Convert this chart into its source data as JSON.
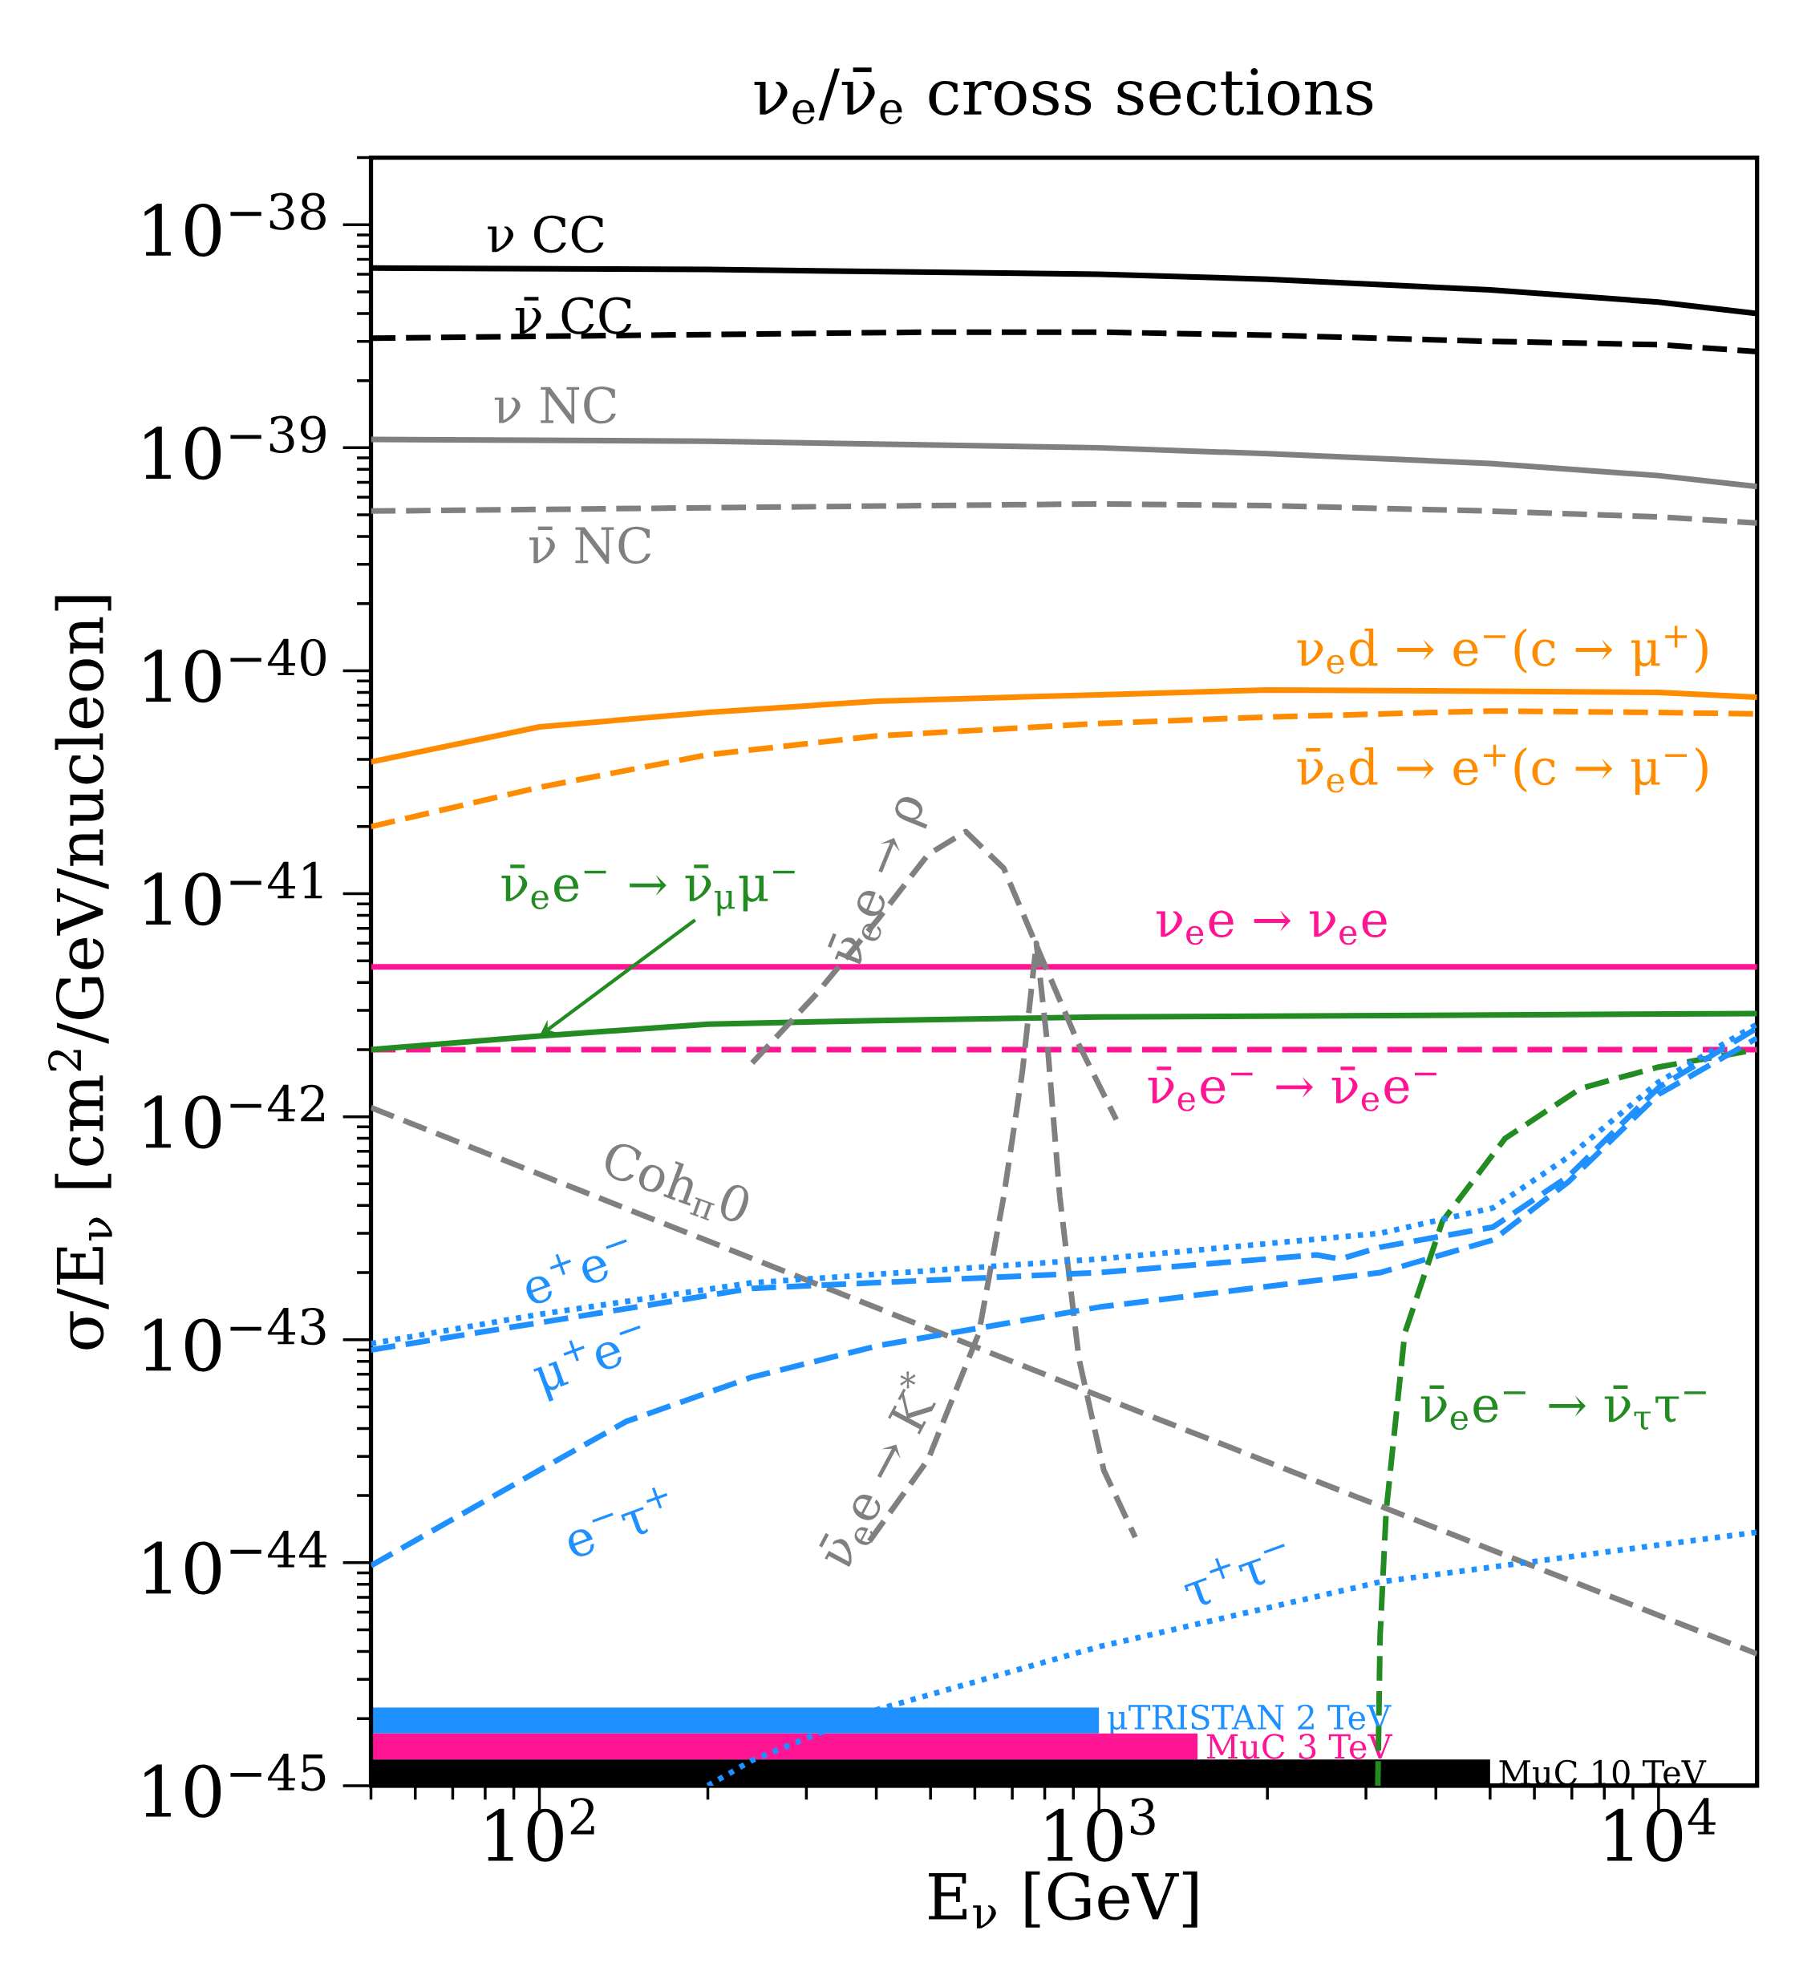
{
  "chart_data": [
    {
      "type": "line",
      "tick_labels": "y",
      "title": "ν$_{e}$/ν̄$_{e}$ cross sections",
      "xlabel": "E$_{ν}$ [GeV]",
      "ylabel": "σ/E$_{ν}$ [cm$^{2}$/GeV/nucleon]",
      "log": "xy",
      "xlim": [
        50,
        15000
      ],
      "ylim": [
        1e-45,
        2e-38
      ],
      "xticks": [
        100,
        1000,
        10000
      ],
      "yticks": [
        {
          "value": 1e-45,
          "label": "10$^{−45}$"
        },
        {
          "value": 1e-44,
          "label": "10$^{−44}$"
        },
        {
          "value": 1e-43,
          "label": "10$^{−43}$"
        },
        {
          "value": 1e-42,
          "label": "10$^{−42}$"
        },
        {
          "value": 1e-41,
          "label": "10$^{−41}$"
        },
        {
          "value": 1e-40,
          "label": "10$^{−40}$"
        },
        {
          "value": 1e-39,
          "label": "10$^{−39}$"
        },
        {
          "value": 1e-38,
          "label": "10$^{−38}$"
        }
      ],
      "series": [
        {
          "name": "ν CC",
          "color": "#000000",
          "line_style": "solid",
          "x": [
            50,
            200,
            1000,
            2000,
            5000,
            10000,
            15000
          ],
          "values": [
            6.4e-39,
            6.3e-39,
            6e-39,
            5.7e-39,
            5.1e-39,
            4.5e-39,
            4e-39
          ]
        },
        {
          "name": "ν̄ CC",
          "color": "#000000",
          "line_style": "dashed",
          "x": [
            50,
            500,
            1000,
            2000,
            5000,
            10000,
            15000
          ],
          "values": [
            3.1e-39,
            3.3e-39,
            3.3e-39,
            3.2e-39,
            3e-39,
            2.9e-39,
            2.7e-39
          ]
        },
        {
          "name": "ν NC",
          "color": "#808080",
          "line_style": "solid",
          "x": [
            50,
            200,
            1000,
            2000,
            5000,
            10000,
            15000
          ],
          "values": [
            1.09e-39,
            1.07e-39,
            1e-39,
            9.4e-40,
            8.5e-40,
            7.5e-40,
            6.7e-40
          ]
        },
        {
          "name": "ν̄ NC",
          "color": "#808080",
          "line_style": "dashed",
          "x": [
            50,
            1000,
            2000,
            5000,
            10000,
            15000
          ],
          "values": [
            5.2e-40,
            5.6e-40,
            5.5e-40,
            5.2e-40,
            4.9e-40,
            4.6e-40
          ]
        },
        {
          "name": "ν$_{e}$d → e$^{−}$(c → μ$^{+}$)",
          "color": "#ff8c00",
          "line_style": "solid",
          "x": [
            50,
            100,
            200,
            400,
            1000,
            2000,
            5000,
            10000,
            15000
          ],
          "values": [
            3.9e-41,
            5.6e-41,
            6.5e-41,
            7.3e-41,
            7.8e-41,
            8.2e-41,
            8.1e-41,
            8e-41,
            7.6e-41
          ]
        },
        {
          "name": "ν̄$_{e}$d → e$^{+}$(c → μ$^{−}$)",
          "color": "#ff8c00",
          "line_style": "dashed",
          "x": [
            50,
            100,
            200,
            400,
            1000,
            2000,
            5000,
            10000,
            15000
          ],
          "values": [
            2e-41,
            3e-41,
            4.2e-41,
            5.1e-41,
            5.8e-41,
            6.2e-41,
            6.6e-41,
            6.5e-41,
            6.4e-41
          ]
        },
        {
          "name": "ν$_{e}$e → ν$_{e}$e",
          "color": "#ff1493",
          "line_style": "solid",
          "x": [
            50,
            15000
          ],
          "values": [
            4.7e-42,
            4.7e-42
          ]
        },
        {
          "name": "ν̄$_{e}$e$^{−}$ → ν̄$_{e}$e$^{−}$",
          "color": "#ff1493",
          "line_style": "dashed",
          "x": [
            50,
            15000
          ],
          "values": [
            2e-42,
            2e-42
          ]
        },
        {
          "name": "ν̄$_{e}$e$^{−}$ → ν̄$_{μ}$μ$^{−}$",
          "color": "#228b22",
          "line_style": "solid",
          "x": [
            50,
            100,
            200,
            400,
            1000,
            15000
          ],
          "values": [
            2e-42,
            2.3e-42,
            2.6e-42,
            2.7e-42,
            2.8e-42,
            2.9e-42
          ]
        },
        {
          "name": "ν̄$_{e}$e$^{−}$ → ν̄$_{τ}$τ$^{−}$",
          "color": "#228b22",
          "line_style": "dashed",
          "x": [
            3150,
            3180,
            3260,
            3520,
            4110,
            5320,
            7260,
            10000,
            15000
          ],
          "values": [
            1e-45,
            4.7e-45,
            1.7e-44,
            1.07e-43,
            3.4e-43,
            8e-43,
            1.34e-42,
            1.67e-42,
            2e-42
          ]
        },
        {
          "name": "Coh$_{π}$0",
          "color": "#808080",
          "line_style": "dashed",
          "x": [
            50,
            1000,
            15000
          ],
          "values": [
            1.1e-42,
            5.6e-44,
            3.9e-45
          ]
        },
        {
          "name": "ν̄$_{e}$e → ρ",
          "color": "#808080",
          "line_style": "dashed",
          "x": [
            240,
            311,
            403,
            495,
            578,
            676,
            789,
            921,
            1074
          ],
          "values": [
            1.74e-42,
            3.5e-42,
            7.7e-42,
            1.5e-41,
            1.9e-41,
            1.3e-41,
            5.2e-42,
            2.1e-42,
            9.7e-43
          ]
        },
        {
          "name": "ν̄$_{e}$e → K$^{*}$",
          "color": "#808080",
          "line_style": "dashed",
          "x": [
            389,
            495,
            610,
            676,
            730,
            773,
            809,
            851,
            921,
            1020,
            1161
          ],
          "values": [
            1.25e-44,
            2.9e-44,
            1.07e-43,
            4.4e-43,
            1.6e-42,
            6e-42,
            2.1e-42,
            4.4e-43,
            8.2e-44,
            2.6e-44,
            1.3e-44
          ]
        },
        {
          "name": "e$^{+}$e$^{−}$",
          "color": "#1e90ff",
          "line_style": "dotted",
          "x": [
            50,
            100,
            240,
            1000,
            3180,
            5060,
            6900,
            10000,
            15000
          ],
          "values": [
            9.6e-44,
            1.3e-43,
            1.8e-43,
            2.3e-43,
            3e-43,
            3.9e-43,
            6.6e-43,
            1.43e-42,
            2.6e-42
          ]
        },
        {
          "name": "μ$^{+}$e$^{−}$",
          "color": "#1e90ff",
          "line_style": "dashed",
          "x": [
            50,
            240,
            1000,
            2450,
            2700,
            3180,
            5060,
            6900,
            10000,
            15000
          ],
          "values": [
            9e-44,
            1.7e-43,
            2e-43,
            2.4e-43,
            2.3e-43,
            2.6e-43,
            3.2e-43,
            5.4e-43,
            1.35e-42,
            2.5e-42
          ]
        },
        {
          "name": "e$^{−}$τ$^{+}$",
          "color": "#1e90ff",
          "line_style": "dashed",
          "x": [
            50,
            100,
            143,
            240,
            403,
            1000,
            3180,
            5060,
            6900,
            10000,
            15000
          ],
          "values": [
            9.7e-45,
            2.6e-44,
            4.3e-44,
            6.8e-44,
            9.4e-44,
            1.4e-43,
            2e-43,
            2.8e-43,
            5.1e-43,
            1.26e-42,
            2.25e-42
          ]
        },
        {
          "name": "τ$^{+}$τ$^{−}$",
          "color": "#1e90ff",
          "line_style": "dotted",
          "x": [
            200,
            240,
            403,
            1000,
            3180,
            10000,
            15000
          ],
          "values": [
            1e-45,
            1.3e-45,
            2.2e-45,
            4.2e-45,
            8.2e-45,
            1.2e-44,
            1.37e-44
          ]
        }
      ]
    },
    {
      "type": "bar",
      "orientation": "horizontal",
      "log": "x",
      "xlim": [
        50,
        15000
      ],
      "tick_labels": "x",
      "xticks": [
        {
          "value": 100,
          "label": "10$^{2}$"
        },
        {
          "value": 1000,
          "label": "10$^{3}$"
        },
        {
          "value": 10000,
          "label": "10$^{4}$"
        }
      ],
      "categories": [
        "μTRISTAN 2 TeV",
        "MuC 3 TeV",
        "MuC 10 TeV"
      ],
      "base": [
        50,
        50,
        50
      ],
      "values": [
        950,
        1450,
        4950
      ],
      "colors": [
        "#1e90ff",
        "#ff1493",
        "#000000"
      ]
    }
  ]
}
